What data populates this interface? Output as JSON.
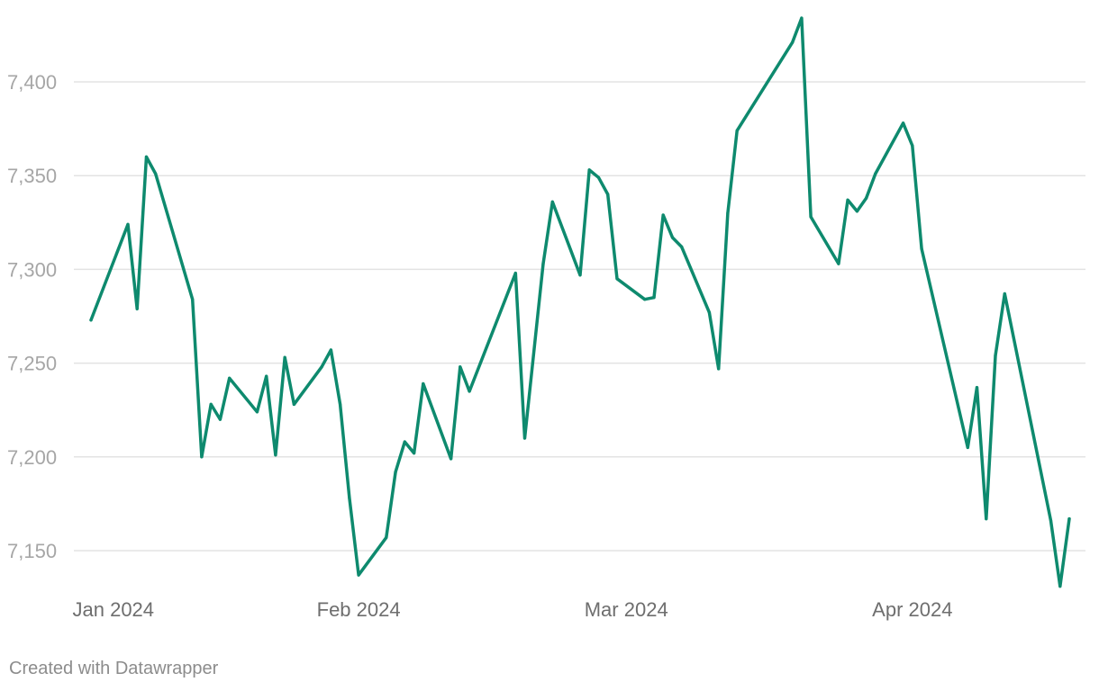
{
  "chart_data": {
    "type": "line",
    "title": "",
    "xlabel": "",
    "ylabel": "",
    "ylim": [
      7130,
      7435
    ],
    "xlim": [
      "2024-01-02",
      "2024-04-19"
    ],
    "grid": "horizontal",
    "y_ticks": [
      {
        "value": 7400,
        "label": "7,400"
      },
      {
        "value": 7350,
        "label": "7,350"
      },
      {
        "value": 7300,
        "label": "7,300"
      },
      {
        "value": 7250,
        "label": "7,250"
      },
      {
        "value": 7200,
        "label": "7,200"
      },
      {
        "value": 7150,
        "label": "7,150"
      }
    ],
    "x_ticks": [
      {
        "date": "2024-01-01",
        "label": "Jan 2024"
      },
      {
        "date": "2024-02-01",
        "label": "Feb 2024"
      },
      {
        "date": "2024-03-01",
        "label": "Mar 2024"
      },
      {
        "date": "2024-04-01",
        "label": "Apr 2024"
      }
    ],
    "series": [
      {
        "color": "#0e8a6e",
        "points": [
          [
            "2024-01-03",
            7273
          ],
          [
            "2024-01-07",
            7324
          ],
          [
            "2024-01-08",
            7279
          ],
          [
            "2024-01-09",
            7360
          ],
          [
            "2024-01-10",
            7351
          ],
          [
            "2024-01-14",
            7284
          ],
          [
            "2024-01-15",
            7200
          ],
          [
            "2024-01-16",
            7228
          ],
          [
            "2024-01-17",
            7220
          ],
          [
            "2024-01-18",
            7242
          ],
          [
            "2024-01-21",
            7224
          ],
          [
            "2024-01-22",
            7243
          ],
          [
            "2024-01-23",
            7201
          ],
          [
            "2024-01-24",
            7253
          ],
          [
            "2024-01-25",
            7228
          ],
          [
            "2024-01-28",
            7248
          ],
          [
            "2024-01-29",
            7257
          ],
          [
            "2024-01-30",
            7228
          ],
          [
            "2024-01-31",
            7178
          ],
          [
            "2024-02-01",
            7137
          ],
          [
            "2024-02-04",
            7157
          ],
          [
            "2024-02-05",
            7192
          ],
          [
            "2024-02-06",
            7208
          ],
          [
            "2024-02-07",
            7202
          ],
          [
            "2024-02-08",
            7239
          ],
          [
            "2024-02-11",
            7199
          ],
          [
            "2024-02-12",
            7248
          ],
          [
            "2024-02-13",
            7235
          ],
          [
            "2024-02-18",
            7298
          ],
          [
            "2024-02-19",
            7210
          ],
          [
            "2024-02-21",
            7303
          ],
          [
            "2024-02-22",
            7336
          ],
          [
            "2024-02-25",
            7297
          ],
          [
            "2024-02-26",
            7353
          ],
          [
            "2024-02-27",
            7349
          ],
          [
            "2024-02-28",
            7340
          ],
          [
            "2024-02-29",
            7295
          ],
          [
            "2024-03-03",
            7284
          ],
          [
            "2024-03-04",
            7285
          ],
          [
            "2024-03-05",
            7329
          ],
          [
            "2024-03-06",
            7317
          ],
          [
            "2024-03-07",
            7312
          ],
          [
            "2024-03-10",
            7277
          ],
          [
            "2024-03-11",
            7247
          ],
          [
            "2024-03-12",
            7330
          ],
          [
            "2024-03-13",
            7374
          ],
          [
            "2024-03-19",
            7421
          ],
          [
            "2024-03-20",
            7434
          ],
          [
            "2024-03-21",
            7328
          ],
          [
            "2024-03-24",
            7303
          ],
          [
            "2024-03-25",
            7337
          ],
          [
            "2024-03-26",
            7331
          ],
          [
            "2024-03-27",
            7338
          ],
          [
            "2024-03-28",
            7351
          ],
          [
            "2024-03-31",
            7378
          ],
          [
            "2024-04-01",
            7366
          ],
          [
            "2024-04-02",
            7311
          ],
          [
            "2024-04-07",
            7205
          ],
          [
            "2024-04-08",
            7237
          ],
          [
            "2024-04-09",
            7167
          ],
          [
            "2024-04-10",
            7254
          ],
          [
            "2024-04-11",
            7287
          ],
          [
            "2024-04-16",
            7166
          ],
          [
            "2024-04-17",
            7131
          ],
          [
            "2024-04-18",
            7167
          ]
        ]
      }
    ]
  },
  "footer": {
    "credit": "Created with Datawrapper"
  }
}
